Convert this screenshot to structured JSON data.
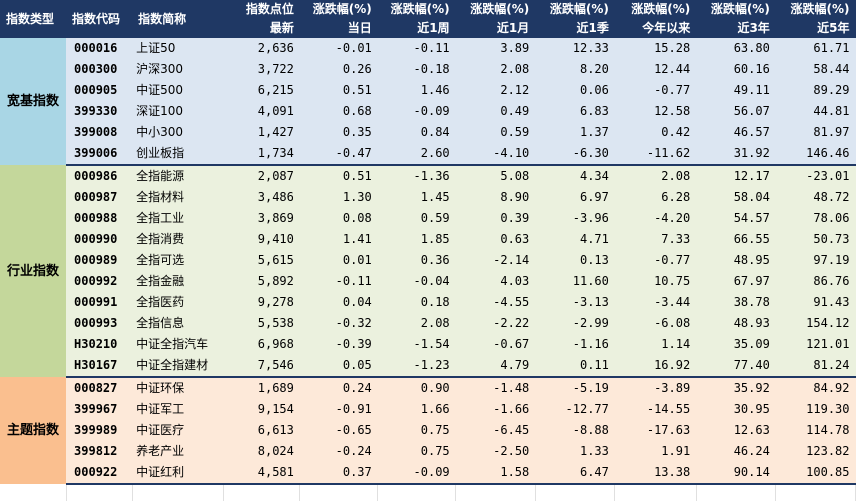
{
  "headers": {
    "row1": [
      "指数类型",
      "指数代码",
      "指数简称",
      "指数点位",
      "涨跌幅(%)",
      "涨跌幅(%)",
      "涨跌幅(%)",
      "涨跌幅(%)",
      "涨跌幅(%)",
      "涨跌幅(%)",
      "涨跌幅(%)"
    ],
    "row2": [
      "",
      "",
      "",
      "最新",
      "当日",
      "近1周",
      "近1月",
      "近1季",
      "今年以来",
      "近3年",
      "近5年"
    ]
  },
  "groups": [
    {
      "category": "宽基指数",
      "rows": [
        [
          "000016",
          "上证50",
          "2,636",
          "-0.01",
          "-0.11",
          "3.89",
          "12.33",
          "15.28",
          "63.80",
          "61.71"
        ],
        [
          "000300",
          "沪深300",
          "3,722",
          "0.26",
          "-0.18",
          "2.08",
          "8.20",
          "12.44",
          "60.16",
          "58.44"
        ],
        [
          "000905",
          "中证500",
          "6,215",
          "0.51",
          "1.46",
          "2.12",
          "0.06",
          "-0.77",
          "49.11",
          "89.29"
        ],
        [
          "399330",
          "深证100",
          "4,091",
          "0.68",
          "-0.09",
          "0.49",
          "6.83",
          "12.58",
          "56.07",
          "44.81"
        ],
        [
          "399008",
          "中小300",
          "1,427",
          "0.35",
          "0.84",
          "0.59",
          "1.37",
          "0.42",
          "46.57",
          "81.97"
        ],
        [
          "399006",
          "创业板指",
          "1,734",
          "-0.47",
          "2.60",
          "-4.10",
          "-6.30",
          "-11.62",
          "31.92",
          "146.46"
        ]
      ]
    },
    {
      "category": "行业指数",
      "rows": [
        [
          "000986",
          "全指能源",
          "2,087",
          "0.51",
          "-1.36",
          "5.08",
          "4.34",
          "2.08",
          "12.17",
          "-23.01"
        ],
        [
          "000987",
          "全指材料",
          "3,486",
          "1.30",
          "1.45",
          "8.90",
          "6.97",
          "6.28",
          "58.04",
          "48.72"
        ],
        [
          "000988",
          "全指工业",
          "3,869",
          "0.08",
          "0.59",
          "0.39",
          "-3.96",
          "-4.20",
          "54.57",
          "78.06"
        ],
        [
          "000990",
          "全指消费",
          "9,410",
          "1.41",
          "1.85",
          "0.63",
          "4.71",
          "7.33",
          "66.55",
          "50.73"
        ],
        [
          "000989",
          "全指可选",
          "5,615",
          "0.01",
          "0.36",
          "-2.14",
          "0.13",
          "-0.77",
          "48.95",
          "97.19"
        ],
        [
          "000992",
          "全指金融",
          "5,892",
          "-0.11",
          "-0.04",
          "4.03",
          "11.60",
          "10.75",
          "67.97",
          "86.76"
        ],
        [
          "000991",
          "全指医药",
          "9,278",
          "0.04",
          "0.18",
          "-4.55",
          "-3.13",
          "-3.44",
          "38.78",
          "91.43"
        ],
        [
          "000993",
          "全指信息",
          "5,538",
          "-0.32",
          "2.08",
          "-2.22",
          "-2.99",
          "-6.08",
          "48.93",
          "154.12"
        ],
        [
          "H30210",
          "中证全指汽车",
          "6,968",
          "-0.39",
          "-1.54",
          "-0.67",
          "-1.16",
          "1.14",
          "35.09",
          "121.01"
        ],
        [
          "H30167",
          "中证全指建材",
          "7,546",
          "0.05",
          "-1.23",
          "4.79",
          "0.11",
          "16.92",
          "77.40",
          "81.24"
        ]
      ]
    },
    {
      "category": "主题指数",
      "rows": [
        [
          "000827",
          "中证环保",
          "1,689",
          "0.24",
          "0.90",
          "-1.48",
          "-5.19",
          "-3.89",
          "35.92",
          "84.92"
        ],
        [
          "399967",
          "中证军工",
          "9,154",
          "-0.91",
          "1.66",
          "-1.66",
          "-12.77",
          "-14.55",
          "30.95",
          "119.30"
        ],
        [
          "399989",
          "中证医疗",
          "6,613",
          "-0.65",
          "0.75",
          "-6.45",
          "-8.88",
          "-17.63",
          "12.63",
          "114.78"
        ],
        [
          "399812",
          "养老产业",
          "8,024",
          "-0.24",
          "0.75",
          "-2.50",
          "1.33",
          "1.91",
          "46.24",
          "123.82"
        ],
        [
          "000922",
          "中证红利",
          "4,581",
          "0.37",
          "-0.09",
          "1.58",
          "6.47",
          "13.38",
          "90.14",
          "100.85"
        ]
      ]
    }
  ]
}
